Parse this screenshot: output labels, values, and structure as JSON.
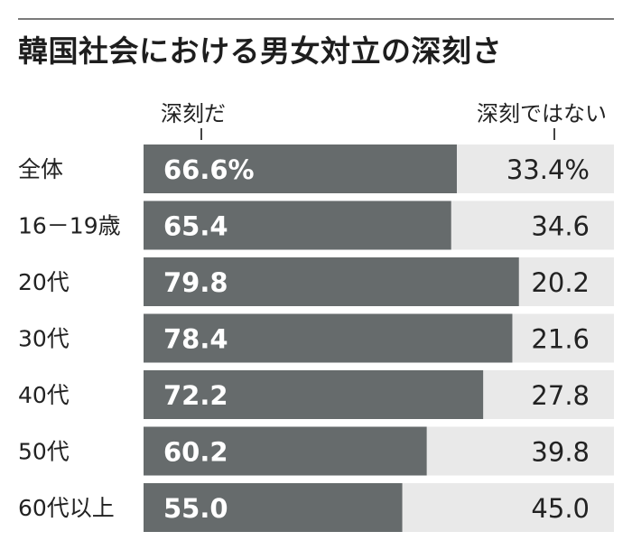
{
  "chart_data": {
    "type": "bar",
    "title": "韓国社会における男女対立の深刻さ",
    "series": [
      {
        "name": "深刻だ",
        "values": [
          66.6,
          65.4,
          79.8,
          78.4,
          72.2,
          60.2,
          55.0
        ],
        "color": "#666b6c"
      },
      {
        "name": "深刻ではない",
        "values": [
          33.4,
          34.6,
          20.2,
          21.6,
          27.8,
          39.8,
          45.0
        ],
        "color": "#e9e9e9"
      }
    ],
    "categories": [
      "全体",
      "16－19歳",
      "20代",
      "30代",
      "40代",
      "50代",
      "60代以上"
    ],
    "labels_positive": [
      "66.6%",
      "65.4",
      "79.8",
      "78.4",
      "72.2",
      "60.2",
      "55.0"
    ],
    "labels_negative": [
      "33.4%",
      "34.6",
      "20.2",
      "21.6",
      "27.8",
      "39.8",
      "45.0"
    ],
    "stacked": true,
    "xlim": [
      0,
      100
    ],
    "legend_position": "top"
  }
}
